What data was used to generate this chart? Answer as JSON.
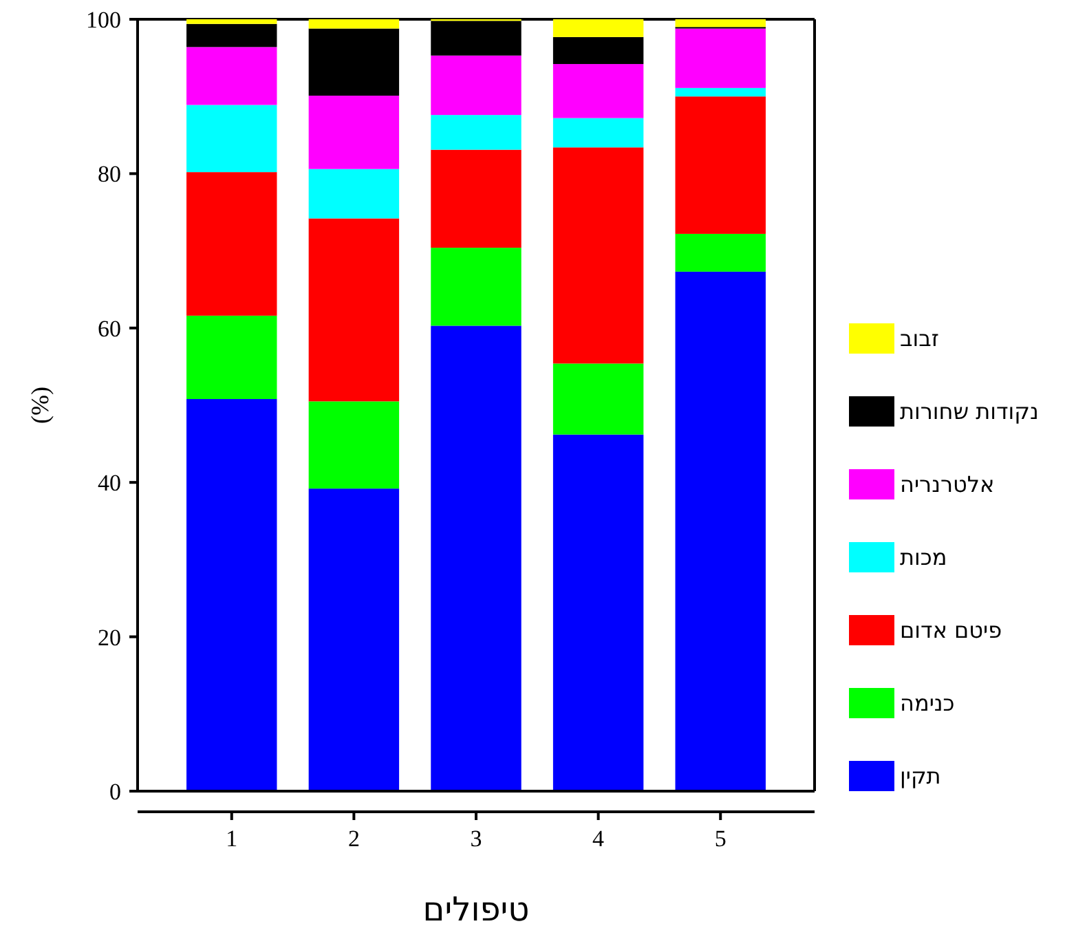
{
  "chart_data": {
    "type": "bar",
    "stacked": true,
    "xlabel": "טיפולים",
    "ylabel": "(%)",
    "categories": [
      "1",
      "2",
      "3",
      "4",
      "5"
    ],
    "ylim": [
      0,
      100
    ],
    "yticks": [
      0,
      20,
      40,
      60,
      80,
      100
    ],
    "grid": false,
    "legend": "right",
    "series": [
      {
        "name": "תקין",
        "color": "#0000ff",
        "values": [
          50.8,
          39.2,
          60.3,
          46.2,
          67.3
        ]
      },
      {
        "name": "כנימה",
        "color": "#00ff00",
        "values": [
          10.8,
          11.3,
          10.1,
          9.2,
          4.9
        ]
      },
      {
        "name": "פיטם אדום",
        "color": "#ff0000",
        "values": [
          18.6,
          23.7,
          12.7,
          28.0,
          17.8
        ]
      },
      {
        "name": "מכות",
        "color": "#00ffff",
        "values": [
          8.7,
          6.4,
          4.5,
          3.8,
          1.1
        ]
      },
      {
        "name": "אלטרנריה",
        "color": "#ff00ff",
        "values": [
          7.5,
          9.5,
          7.7,
          7.0,
          7.7
        ]
      },
      {
        "name": "נקודות שחורות",
        "color": "#000000",
        "values": [
          3.0,
          8.7,
          4.5,
          3.5,
          0.2
        ]
      },
      {
        "name": "זבוב",
        "color": "#ffff00",
        "values": [
          0.6,
          1.2,
          0.2,
          2.3,
          1.0
        ]
      }
    ]
  }
}
